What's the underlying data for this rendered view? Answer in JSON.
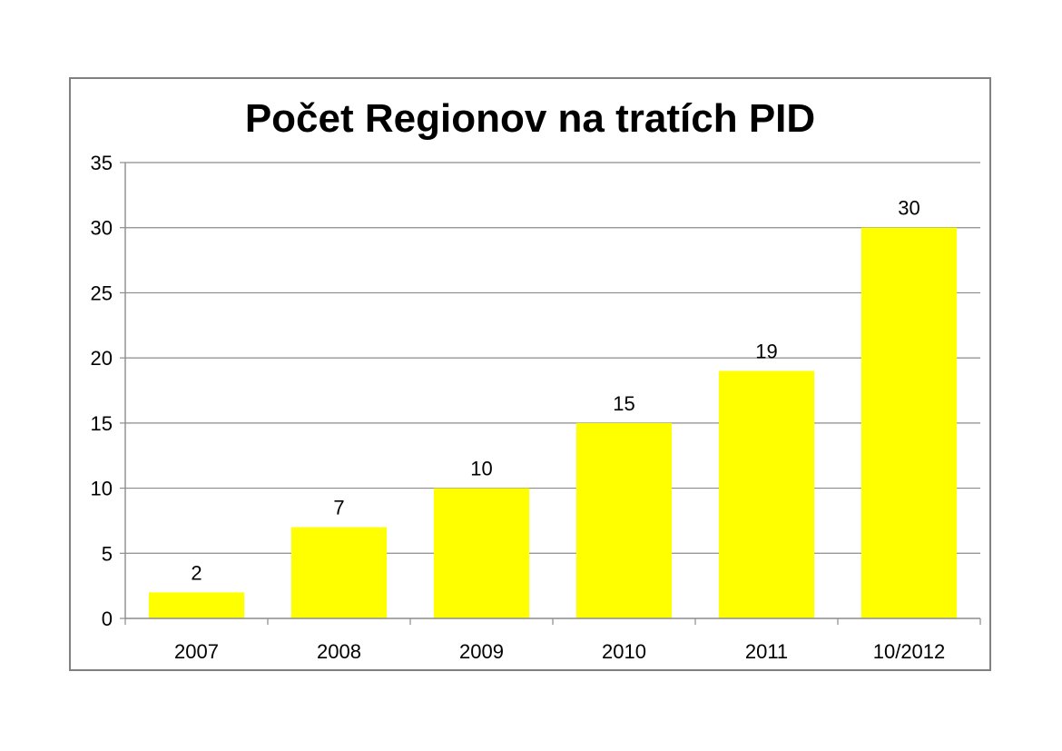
{
  "chart_data": {
    "type": "bar",
    "title": "Počet Regionov na tratích PID",
    "categories": [
      "2007",
      "2008",
      "2009",
      "2010",
      "2011",
      "10/2012"
    ],
    "values": [
      2,
      7,
      10,
      15,
      19,
      30
    ],
    "data_labels": [
      "2",
      "7",
      "10",
      "15",
      "19",
      "30"
    ],
    "ylim": [
      0,
      35
    ],
    "yticks": [
      0,
      5,
      10,
      15,
      20,
      25,
      30,
      35
    ],
    "ytick_labels": [
      "0",
      "5",
      "10",
      "15",
      "20",
      "25",
      "30",
      "35"
    ],
    "grid": true,
    "legend": "none",
    "bar_color": "#ffff00",
    "grid_color": "#8c8c8c",
    "frame_color": "#808080"
  }
}
